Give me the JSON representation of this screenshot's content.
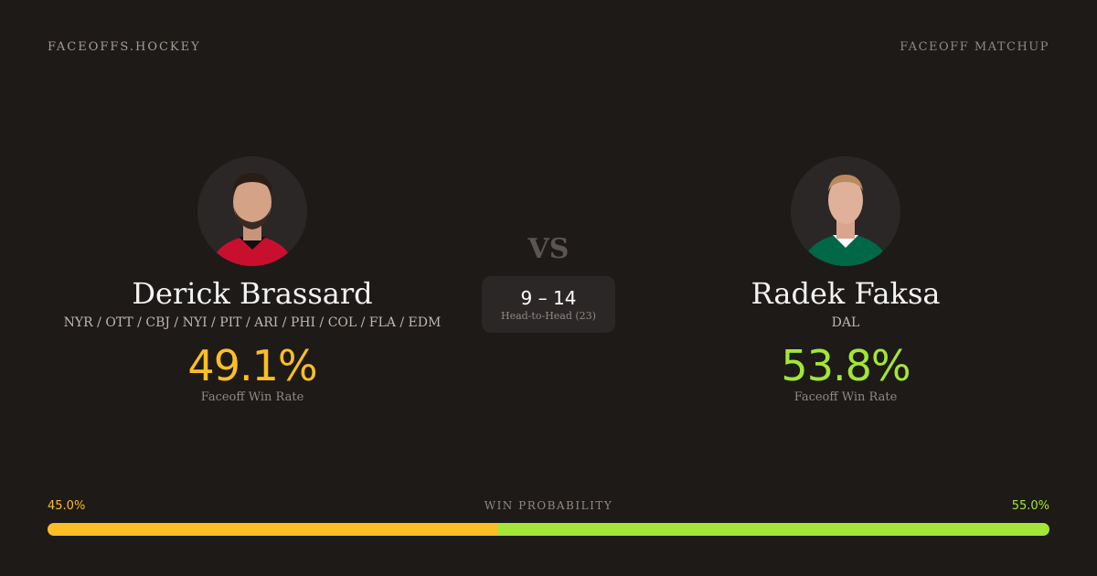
{
  "brand": "FACEOFFS.HOCKEY",
  "page_kind": "FACEOFF MATCHUP",
  "colors": {
    "player1": "#fbbf24",
    "player2": "#a3e635",
    "background": "#1e1a18"
  },
  "player1": {
    "name": "Derick Brassard",
    "teams": "NYR / OTT / CBJ / NYI / PIT / ARI / PHI / COL / FLA / EDM",
    "win_rate": "49.1%",
    "win_rate_label": "Faceoff Win Rate",
    "jersey_color": "#c8102e",
    "avatar_icon": "player-headshot"
  },
  "player2": {
    "name": "Radek Faksa",
    "teams": "DAL",
    "win_rate": "53.8%",
    "win_rate_label": "Faceoff Win Rate",
    "jersey_color": "#006847",
    "avatar_icon": "player-headshot"
  },
  "vs": "VS",
  "head_to_head": {
    "score": "9 – 14",
    "label": "Head-to-Head (23)"
  },
  "win_probability": {
    "label": "WIN PROBABILITY",
    "player1_pct": 45.0,
    "player2_pct": 55.0,
    "player1_text": "45.0%",
    "player2_text": "55.0%"
  }
}
